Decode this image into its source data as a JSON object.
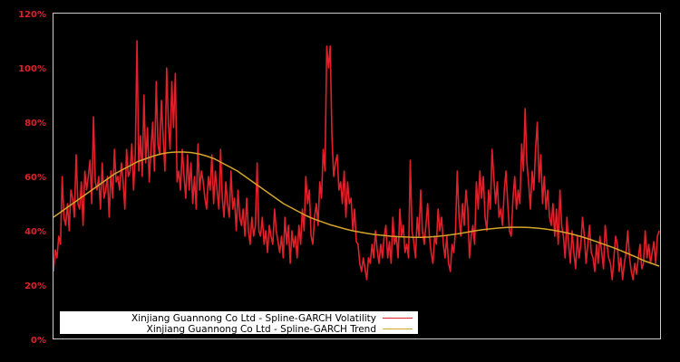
{
  "chart_data": {
    "type": "line",
    "title": "",
    "xlabel": "",
    "ylabel": "",
    "ylim": [
      0,
      120
    ],
    "y_ticks": [
      "0%",
      "20%",
      "40%",
      "60%",
      "80%",
      "100%",
      "120%"
    ],
    "y_tick_values": [
      0,
      20,
      40,
      60,
      80,
      100,
      120
    ],
    "grid": false,
    "legend_position": "lower-left inside",
    "background": "#000000",
    "axis_label_color": "#e0202a",
    "frame_color": "#cccccc",
    "series": [
      {
        "name": "Xinjiang Guannong Co Ltd - Spline-GARCH Volatility",
        "color": "#e0202a",
        "values": [
          25,
          33,
          30,
          38,
          35,
          60,
          45,
          42,
          50,
          40,
          55,
          52,
          45,
          68,
          50,
          48,
          58,
          42,
          62,
          55,
          60,
          66,
          50,
          82,
          58,
          55,
          60,
          48,
          65,
          52,
          55,
          60,
          45,
          62,
          52,
          70,
          58,
          60,
          55,
          65,
          58,
          48,
          70,
          60,
          62,
          72,
          55,
          68,
          110,
          62,
          75,
          60,
          90,
          65,
          78,
          58,
          70,
          80,
          62,
          95,
          72,
          68,
          88,
          75,
          62,
          100,
          80,
          70,
          95,
          78,
          98,
          58,
          62,
          55,
          70,
          60,
          52,
          68,
          55,
          65,
          50,
          60,
          48,
          72,
          55,
          62,
          58,
          52,
          48,
          60,
          55,
          68,
          50,
          62,
          55,
          48,
          70,
          52,
          45,
          58,
          50,
          45,
          62,
          48,
          52,
          40,
          55,
          45,
          42,
          48,
          38,
          52,
          40,
          35,
          45,
          38,
          42,
          65,
          40,
          38,
          45,
          35,
          40,
          32,
          42,
          38,
          35,
          48,
          40,
          36,
          32,
          38,
          30,
          45,
          35,
          42,
          28,
          40,
          34,
          38,
          30,
          42,
          35,
          48,
          40,
          60,
          50,
          55,
          38,
          35,
          45,
          50,
          42,
          58,
          52,
          70,
          62,
          108,
          100,
          108,
          75,
          60,
          65,
          68,
          55,
          58,
          50,
          62,
          45,
          58,
          50,
          52,
          40,
          48,
          36,
          35,
          28,
          25,
          30,
          26,
          22,
          30,
          28,
          35,
          30,
          40,
          33,
          28,
          35,
          30,
          38,
          42,
          30,
          36,
          28,
          45,
          35,
          38,
          30,
          48,
          38,
          42,
          32,
          35,
          30,
          66,
          40,
          36,
          30,
          45,
          38,
          55,
          40,
          35,
          42,
          50,
          38,
          32,
          28,
          38,
          35,
          48,
          40,
          45,
          35,
          30,
          38,
          28,
          25,
          35,
          32,
          40,
          62,
          45,
          38,
          50,
          42,
          55,
          48,
          30,
          38,
          42,
          35,
          58,
          48,
          62,
          52,
          60,
          45,
          40,
          55,
          48,
          70,
          60,
          50,
          58,
          45,
          48,
          42,
          55,
          62,
          50,
          40,
          38,
          52,
          60,
          48,
          55,
          50,
          72,
          62,
          85,
          65,
          58,
          48,
          62,
          55,
          70,
          80,
          58,
          68,
          50,
          60,
          48,
          55,
          45,
          42,
          50,
          38,
          48,
          35,
          55,
          42,
          38,
          30,
          45,
          35,
          28,
          40,
          32,
          26,
          38,
          30,
          35,
          45,
          38,
          28,
          35,
          42,
          32,
          30,
          25,
          35,
          28,
          38,
          32,
          26,
          42,
          35,
          30,
          28,
          22,
          30,
          38,
          35,
          25,
          30,
          22,
          28,
          32,
          40,
          30,
          25,
          22,
          28,
          24,
          30,
          35,
          26,
          28,
          40,
          30,
          35,
          28,
          32,
          36,
          28,
          38,
          40
        ]
      },
      {
        "name": "Xinjiang Guannong Co Ltd - Spline-GARCH Trend",
        "color": "#d4a52a",
        "values": [
          45,
          47,
          49,
          51,
          53,
          55,
          57,
          59,
          61,
          62.5,
          64,
          65.5,
          66.5,
          67.5,
          68.3,
          68.8,
          69,
          69,
          68.8,
          68.3,
          67.5,
          66.5,
          65,
          63.5,
          62,
          60,
          58,
          56,
          54,
          52,
          50,
          48.5,
          47,
          45.5,
          44.3,
          43.3,
          42.3,
          41.5,
          40.7,
          40,
          39.5,
          39,
          38.6,
          38.3,
          38,
          37.8,
          37.7,
          37.6,
          37.6,
          37.7,
          37.9,
          38.2,
          38.6,
          39,
          39.5,
          40,
          40.4,
          40.7,
          41,
          41.2,
          41.3,
          41.3,
          41.2,
          41,
          40.7,
          40.3,
          39.8,
          39.2,
          38.5,
          37.7,
          36.8,
          35.8,
          34.8,
          33.8,
          32.7,
          31.5,
          30.3,
          29,
          28,
          27
        ]
      }
    ]
  },
  "legend": {
    "items": [
      {
        "label": "Xinjiang Guannong Co Ltd - Spline-GARCH Volatility",
        "color": "#e0202a"
      },
      {
        "label": "Xinjiang Guannong Co Ltd - Spline-GARCH Trend",
        "color": "#d4a52a"
      }
    ]
  }
}
